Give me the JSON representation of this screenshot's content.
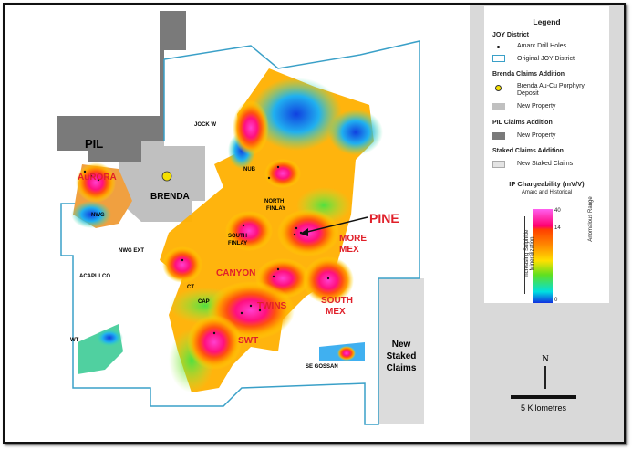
{
  "legend": {
    "title": "Legend",
    "joy_district": {
      "heading": "JOY District",
      "drill_holes": "Amarc Drill Holes",
      "original": "Original JOY District"
    },
    "brenda": {
      "heading": "Brenda Claims Addition",
      "deposit": "Brenda Au-Cu Porphyry Deposit",
      "new_property": "New Property"
    },
    "pil": {
      "heading": "PIL Claims Addition",
      "new_property": "New Property"
    },
    "staked": {
      "heading": "Staked Claims Addition",
      "new_staked": "New Staked Claims"
    },
    "ip": {
      "title": "IP Chargeability (mV/V)",
      "subtitle": "Amarc and Historical",
      "max": "40",
      "threshold": "14",
      "min": "0",
      "side_label": "Increasing Sulphide Mineralization",
      "range_label": "Anomalous Range"
    }
  },
  "scale": {
    "label": "5 Kilometres"
  },
  "north": {
    "label": "N"
  },
  "map_labels": {
    "pil": "PIL",
    "brenda": "BRENDA",
    "aurora": "AuRORA",
    "nwg": "NWG",
    "jock_w": "JOCK W",
    "nub": "NUB",
    "north_finlay_1": "NORTH",
    "north_finlay_2": "FINLAY",
    "south_finlay_1": "SOUTH",
    "south_finlay_2": "FINLAY",
    "pine": "PINE",
    "more_mex_1": "MORE",
    "more_mex_2": "MEX",
    "nwg_ext": "NWG EXT",
    "acapulco": "ACAPULCO",
    "canyon": "CANYON",
    "ct": "CT",
    "cap": "CAP",
    "twins": "TWINS",
    "south_mex_1": "SOUTH",
    "south_mex_2": "MEX",
    "swt": "SWT",
    "wt": "WT",
    "se_gossan": "SE GOSSAN",
    "new_staked_1": "New",
    "new_staked_2": "Staked",
    "new_staked_3": "Claims"
  },
  "colors": {
    "joy_outline": "#3aa0c8",
    "brenda_property": "#c0c0c0",
    "pil_property": "#7a7a7a",
    "staked": "#dcdcdc",
    "deposit": "#f5e000",
    "target_label": "#e0202a"
  }
}
